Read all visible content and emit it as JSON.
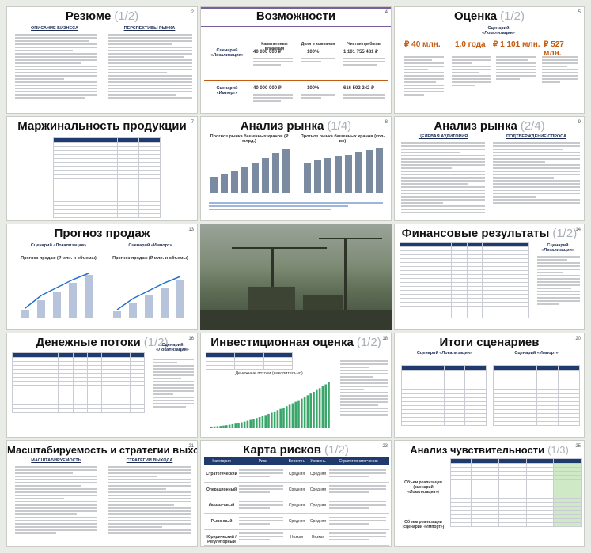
{
  "slides": [
    {
      "num": "2",
      "title": "Резюме",
      "part": "(1/2)",
      "sub": [
        "ОПИСАНИЕ БИЗНЕСА",
        "ПЕРСПЕКТИВЫ РЫНКА"
      ]
    },
    {
      "num": "4",
      "title": "Возможности",
      "part": "",
      "scenarios": [
        {
          "label": "Сценарий «Локализация»",
          "capex": "40 000 000 ₽",
          "share": "100%",
          "profit": "1 101 755 481 ₽",
          "profit_lbl": "Чистая прибыль"
        },
        {
          "label": "Сценарий «Импорт»",
          "capex": "40 000 000 ₽",
          "share": "100%",
          "profit": "616 502 242 ₽",
          "profit_lbl": "Чистая прибыль"
        }
      ],
      "hdrs": [
        "Капитальные вложения",
        "Доля в компании",
        "Чистая прибыль"
      ]
    },
    {
      "num": "5",
      "title": "Оценка",
      "part": "(1/2)",
      "scenario": "Сценарий «Локализация»",
      "kpis": [
        "₽ 40 млн.",
        "1.0 года",
        "₽ 1 101 млн.",
        "₽ 527 млн."
      ]
    },
    {
      "num": "7",
      "title": "Маржинальность продукции",
      "part": ""
    },
    {
      "num": "8",
      "title": "Анализ рынка",
      "part": "(1/4)",
      "charts": [
        "Прогноз рынка башенных кранов (₽ млрд.)",
        "Прогноз рынка башенных кранов (кол-во)"
      ]
    },
    {
      "num": "9",
      "title": "Анализ рынка",
      "part": "(2/4)",
      "sub": [
        "ЦЕЛЕВАЯ АУДИТОРИЯ",
        "ПОДТВЕРЖДЕНИЕ СПРОСА"
      ]
    },
    {
      "num": "13",
      "title": "Прогноз продаж",
      "part": "",
      "scenarios": [
        "Сценарий «Локализация»",
        "Сценарий «Импорт»"
      ],
      "charts": [
        "Прогноз продаж (₽ млн. и объемы)",
        "Прогноз продаж (₽ млн. и объемы)"
      ]
    },
    {
      "num": "14",
      "title": "Финансовые результаты",
      "part": "(1/2)",
      "scenario": "Сценарий «Локализация»"
    },
    {
      "num": "16",
      "title": "Денежные потоки",
      "part": "(1/2)",
      "scenario": "Сценарий «Локализация»"
    },
    {
      "num": "18",
      "title": "Инвестиционная оценка",
      "part": "(1/2)",
      "chart": "Денежные потоки (накопительно)"
    },
    {
      "num": "20",
      "title": "Итоги сценариев",
      "part": "",
      "scenarios": [
        "Сценарий «Локализация»",
        "Сценарий «Импорт»"
      ]
    },
    {
      "num": "21",
      "title": "Масштабируемость и стратегии выхода",
      "part": "",
      "sub": [
        "МАСШТАБИРУЕМОСТЬ",
        "СТРАТЕГИИ ВЫХОДА"
      ]
    },
    {
      "num": "23",
      "title": "Карта рисков",
      "part": "(1/2)",
      "cols": [
        "Категория",
        "Риск",
        "Вероятн.",
        "Уровень",
        "Стратегия смягчения"
      ],
      "cats": [
        "Стратегический",
        "Операционный",
        "Финансовый",
        "Рыночный",
        "Юридический / Регуляторный"
      ],
      "levels": [
        "Средняя",
        "Средняя",
        "Средняя",
        "Средняя",
        "Низкая"
      ]
    },
    {
      "num": "25",
      "title": "Анализ чувствительности",
      "part": "(1/3)",
      "rows": [
        "Объем реализации (сценарий «Локализация»)",
        "Объем реализации (сценарий «Импорт»)"
      ]
    }
  ],
  "colors": {
    "navy": "#1f3b6e",
    "orange": "#c55a11",
    "gold": "#d1a21c",
    "teal": "#2a8a6e"
  }
}
